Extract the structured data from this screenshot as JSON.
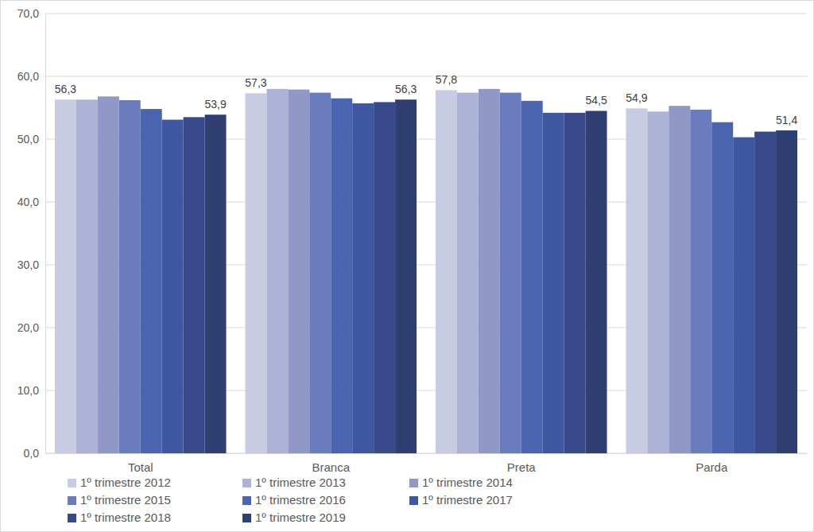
{
  "chart_data": {
    "type": "bar",
    "categories": [
      "Total",
      "Branca",
      "Preta",
      "Parda"
    ],
    "series": [
      {
        "name": "1º trimestre 2012",
        "color": "#c8cce2",
        "values": [
          56.3,
          57.3,
          57.8,
          54.9
        ],
        "value_labels": [
          "56,3",
          "57,3",
          "57,8",
          "54,9"
        ]
      },
      {
        "name": "1º trimestre 2013",
        "color": "#adb3d6",
        "values": [
          56.3,
          58.0,
          57.4,
          54.4
        ]
      },
      {
        "name": "1º trimestre 2014",
        "color": "#9098c8",
        "values": [
          56.8,
          57.9,
          58.0,
          55.3
        ]
      },
      {
        "name": "1º trimestre 2015",
        "color": "#6a7cbe",
        "values": [
          56.2,
          57.4,
          57.4,
          54.7
        ]
      },
      {
        "name": "1º trimestre 2016",
        "color": "#4a64b0",
        "values": [
          54.8,
          56.5,
          56.1,
          52.7
        ]
      },
      {
        "name": "1º trimestre 2017",
        "color": "#3f56a0",
        "values": [
          53.1,
          55.7,
          54.2,
          50.3
        ]
      },
      {
        "name": "1º trimestre 2018",
        "color": "#37498a",
        "values": [
          53.5,
          55.9,
          54.2,
          51.2
        ]
      },
      {
        "name": "1º trimestre 2019",
        "color": "#2f3f72",
        "values": [
          53.9,
          56.3,
          54.5,
          51.4
        ],
        "value_labels": [
          "53,9",
          "56,3",
          "54,5",
          "51,4"
        ]
      }
    ],
    "ylim": [
      0,
      70
    ],
    "yticks": [
      {
        "value": 0,
        "label": "0,0"
      },
      {
        "value": 10,
        "label": "10,0"
      },
      {
        "value": 20,
        "label": "20,0"
      },
      {
        "value": 30,
        "label": "30,0"
      },
      {
        "value": 40,
        "label": "40,0"
      },
      {
        "value": 50,
        "label": "50,0"
      },
      {
        "value": 60,
        "label": "60,0"
      },
      {
        "value": 70,
        "label": "70,0"
      }
    ],
    "grid": true,
    "legend": "bottom",
    "data_labels": true
  }
}
